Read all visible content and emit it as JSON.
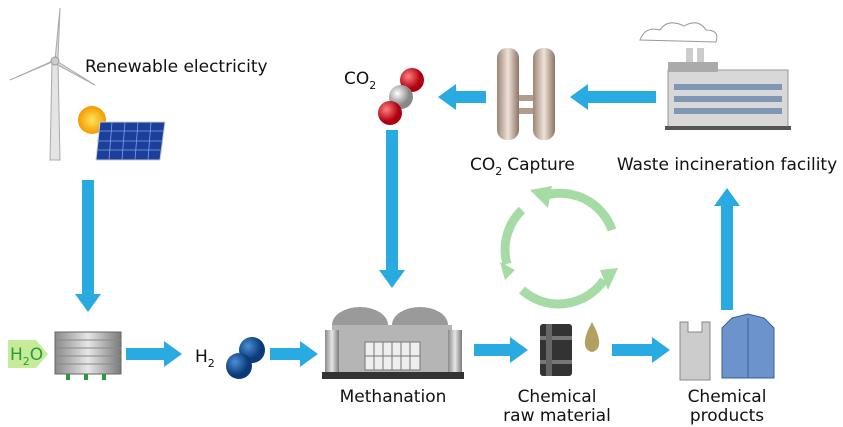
{
  "labels": {
    "renewable": {
      "lines": [
        "Renewable electricity"
      ]
    },
    "co2": {
      "main": "CO",
      "sub": "2"
    },
    "co2_capture": {
      "main": "CO",
      "sub": "2",
      "rest": "Capture"
    },
    "waste": {
      "lines": [
        "Waste incineration facility"
      ]
    },
    "h2o": {
      "main": "H",
      "sub": "2",
      "rest": "O"
    },
    "h2": {
      "main": "H",
      "sub": "2"
    },
    "methanation": {
      "lines": [
        "Methanation"
      ]
    },
    "raw_material": {
      "lines": [
        "Chemical",
        "raw material"
      ]
    },
    "products": {
      "lines": [
        "Chemical",
        "products"
      ]
    }
  }
}
